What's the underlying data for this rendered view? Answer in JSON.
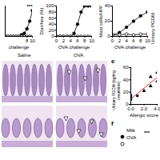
{
  "chart_data": [
    {
      "type": "line",
      "xlabel": "challenge",
      "xlim": [
        0,
        10
      ],
      "xticks": [
        8,
        10
      ],
      "ylim": [
        0,
        1
      ],
      "tick_labels": "x",
      "annotations": [
        "***"
      ],
      "x": [
        0,
        1,
        2,
        3,
        4,
        5,
        6,
        7,
        8,
        9,
        10
      ],
      "series": [
        {
          "color": "#000000",
          "marker": "filled",
          "values": [
            0,
            0,
            0,
            0,
            0,
            0,
            0.05,
            0.1,
            0.25,
            0.5,
            0.85
          ]
        },
        {
          "color": "#000000",
          "marker": "open",
          "values": [
            0,
            0,
            0,
            0,
            0,
            0,
            0,
            0,
            0,
            0,
            0
          ]
        }
      ]
    },
    {
      "type": "line",
      "xlabel": "OVA challenge",
      "ylabel": "Diarrhea (%)",
      "xlim": [
        0,
        10
      ],
      "xticks": [
        0,
        2,
        4,
        6,
        8,
        10
      ],
      "ylim": [
        0,
        100
      ],
      "yticks": [
        0,
        20,
        40,
        60,
        80,
        100
      ],
      "x": [
        0,
        1,
        2,
        3,
        4,
        5,
        6,
        7,
        8,
        9,
        10
      ],
      "series": [
        {
          "color": "#000000",
          "marker": "filled",
          "values": [
            0,
            0,
            0,
            0,
            0,
            10,
            40,
            80,
            100,
            100,
            100
          ]
        },
        {
          "color": "#000000",
          "marker": "open",
          "values": [
            0,
            0,
            0,
            0,
            0,
            0,
            0,
            0,
            0,
            0,
            0
          ]
        }
      ]
    },
    {
      "type": "line",
      "xlabel": "OVA challenge",
      "ylabel": "Mast cells/HPF",
      "xlim": [
        0,
        10
      ],
      "xticks": [
        0,
        2,
        4,
        6,
        8,
        10
      ],
      "ylim": [
        0,
        40
      ],
      "yticks": [
        0,
        20,
        40
      ],
      "x": [
        0,
        2,
        4,
        6,
        8,
        10
      ],
      "series": [
        {
          "color": "#000000",
          "marker": "filled",
          "values": [
            2,
            5,
            12,
            20,
            27,
            32
          ]
        },
        {
          "color": "#000000",
          "marker": "open",
          "values": [
            2,
            2,
            3,
            2,
            3,
            3
          ]
        }
      ]
    },
    {
      "type": "scatter",
      "panel": "e",
      "xlabel": "Allergic score",
      "ylabel": "Urinary PGDM (ng/mg creatinine)",
      "xlim": [
        0,
        4
      ],
      "xticks": [
        0,
        2,
        4
      ],
      "ylim": [
        0,
        60
      ],
      "yticks": [
        0,
        20,
        40,
        60
      ],
      "points": [
        {
          "x": 0,
          "y": 8,
          "marker": "circle"
        },
        {
          "x": 0,
          "y": 12,
          "marker": "circle"
        },
        {
          "x": 0,
          "y": 15,
          "marker": "circle"
        },
        {
          "x": 1,
          "y": 14,
          "marker": "circle"
        },
        {
          "x": 2,
          "y": 22,
          "marker": "triangle"
        },
        {
          "x": 3,
          "y": 30,
          "marker": "triangle"
        },
        {
          "x": 3,
          "y": 45,
          "marker": "triangle"
        },
        {
          "x": 4,
          "y": 38,
          "marker": "triangle"
        },
        {
          "x": 4,
          "y": 52,
          "marker": "triangle"
        }
      ],
      "fit": {
        "color": "#e03030",
        "x": [
          0,
          4
        ],
        "y": [
          9,
          44
        ]
      }
    },
    {
      "type": "legend",
      "panel": "f",
      "annotations": [
        "***"
      ],
      "series": [
        {
          "name": "Milk",
          "color": "#000000",
          "marker": "filled"
        },
        {
          "name": "OVA",
          "color": "#000000",
          "marker": "open"
        }
      ]
    }
  ],
  "images": {
    "columns": [
      "Saline",
      "OVA"
    ]
  },
  "texts": [
    "Urinary PGDM"
  ]
}
